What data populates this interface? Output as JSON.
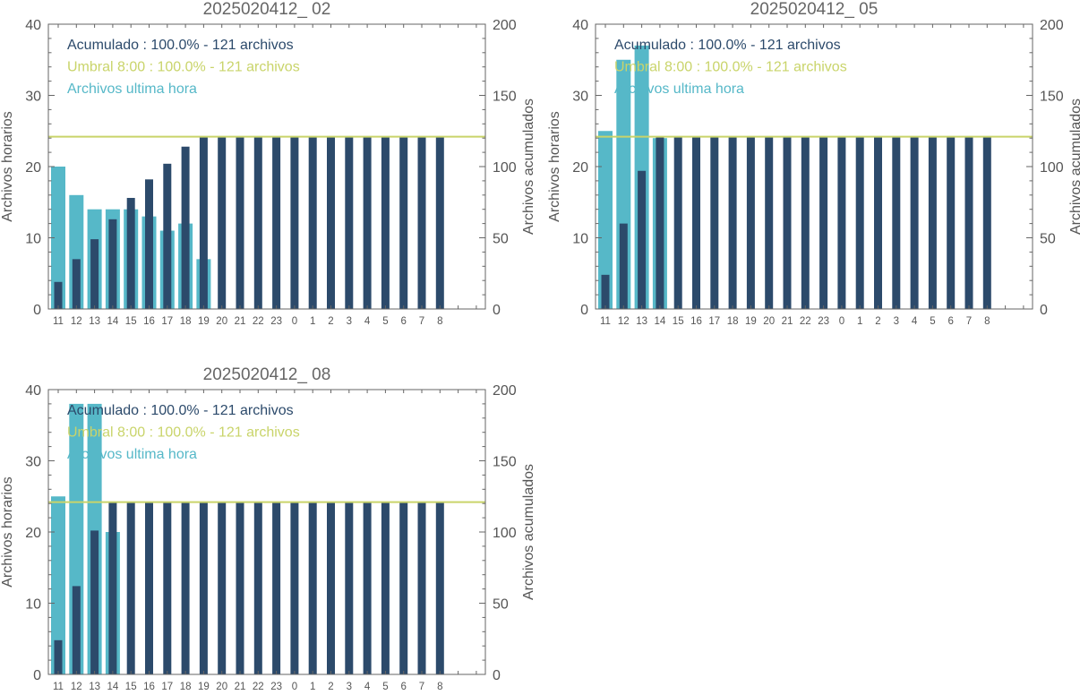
{
  "colors": {
    "accumulated": "#2c4a6b",
    "threshold": "#c9d46a",
    "hourly": "#56b8c8",
    "axis": "#666666",
    "text": "#555555"
  },
  "chart_data": [
    {
      "type": "bar",
      "title": "2025020412_ 02",
      "ylabel": "Archivos horarios",
      "ylabel_right": "Archivos acumulados",
      "ylim": [
        0,
        40
      ],
      "ylim_right": [
        0,
        200
      ],
      "yticks": [
        "0",
        "10",
        "20",
        "30",
        "40"
      ],
      "yticks_right": [
        "0",
        "50",
        "100",
        "150",
        "200"
      ],
      "categories": [
        "11",
        "12",
        "13",
        "14",
        "15",
        "16",
        "17",
        "18",
        "19",
        "20",
        "21",
        "22",
        "23",
        "0",
        "1",
        "2",
        "3",
        "4",
        "5",
        "6",
        "7",
        "8"
      ],
      "series": [
        {
          "name": "Archivos ultima hora",
          "axis": "left",
          "values": [
            20,
            16,
            14,
            14,
            14,
            13,
            11,
            12,
            7,
            0,
            0,
            0,
            0,
            0,
            0,
            0,
            0,
            0,
            0,
            0,
            0,
            0
          ]
        },
        {
          "name": "Acumulado",
          "axis": "right",
          "values": [
            19,
            35,
            49,
            63,
            78,
            91,
            102,
            114,
            121,
            121,
            121,
            121,
            121,
            121,
            121,
            121,
            121,
            121,
            121,
            121,
            121,
            121
          ]
        }
      ],
      "threshold_right": 121,
      "legend": [
        {
          "text": "Acumulado : 100.0% - 121 archivos",
          "color_key": "accumulated"
        },
        {
          "text": "Umbral 8:00 : 100.0% - 121 archivos",
          "color_key": "threshold"
        },
        {
          "text": "Archivos ultima hora",
          "color_key": "hourly"
        }
      ],
      "legend_placement": "top-left",
      "grid": false
    },
    {
      "type": "bar",
      "title": "2025020412_ 05",
      "ylabel": "Archivos horarios",
      "ylabel_right": "Archivos acumulados",
      "ylim": [
        0,
        40
      ],
      "ylim_right": [
        0,
        200
      ],
      "yticks": [
        "0",
        "10",
        "20",
        "30",
        "40"
      ],
      "yticks_right": [
        "0",
        "50",
        "100",
        "150",
        "200"
      ],
      "categories": [
        "11",
        "12",
        "13",
        "14",
        "15",
        "16",
        "17",
        "18",
        "19",
        "20",
        "21",
        "22",
        "23",
        "0",
        "1",
        "2",
        "3",
        "4",
        "5",
        "6",
        "7",
        "8"
      ],
      "series": [
        {
          "name": "Archivos ultima hora",
          "axis": "left",
          "values": [
            25,
            35,
            37,
            24,
            0,
            0,
            0,
            0,
            0,
            0,
            0,
            0,
            0,
            0,
            0,
            0,
            0,
            0,
            0,
            0,
            0,
            0
          ]
        },
        {
          "name": "Acumulado",
          "axis": "right",
          "values": [
            24,
            60,
            97,
            121,
            121,
            121,
            121,
            121,
            121,
            121,
            121,
            121,
            121,
            121,
            121,
            121,
            121,
            121,
            121,
            121,
            121,
            121
          ]
        }
      ],
      "threshold_right": 121,
      "legend": [
        {
          "text": "Acumulado : 100.0% - 121 archivos",
          "color_key": "accumulated"
        },
        {
          "text": "Umbral 8:00 : 100.0% - 121 archivos",
          "color_key": "threshold"
        },
        {
          "text": "Archivos ultima hora",
          "color_key": "hourly"
        }
      ],
      "legend_placement": "top-left",
      "grid": false
    },
    {
      "type": "bar",
      "title": "2025020412_ 08",
      "ylabel": "Archivos horarios",
      "ylabel_right": "Archivos acumulados",
      "ylim": [
        0,
        40
      ],
      "ylim_right": [
        0,
        200
      ],
      "yticks": [
        "0",
        "10",
        "20",
        "30",
        "40"
      ],
      "yticks_right": [
        "0",
        "50",
        "100",
        "150",
        "200"
      ],
      "categories": [
        "11",
        "12",
        "13",
        "14",
        "15",
        "16",
        "17",
        "18",
        "19",
        "20",
        "21",
        "22",
        "23",
        "0",
        "1",
        "2",
        "3",
        "4",
        "5",
        "6",
        "7",
        "8"
      ],
      "series": [
        {
          "name": "Archivos ultima hora",
          "axis": "left",
          "values": [
            25,
            38,
            38,
            20,
            0,
            0,
            0,
            0,
            0,
            0,
            0,
            0,
            0,
            0,
            0,
            0,
            0,
            0,
            0,
            0,
            0,
            0
          ]
        },
        {
          "name": "Acumulado",
          "axis": "right",
          "values": [
            24,
            62,
            101,
            121,
            121,
            121,
            121,
            121,
            121,
            121,
            121,
            121,
            121,
            121,
            121,
            121,
            121,
            121,
            121,
            121,
            121,
            121
          ]
        }
      ],
      "threshold_right": 121,
      "legend": [
        {
          "text": "Acumulado : 100.0% - 121 archivos",
          "color_key": "accumulated"
        },
        {
          "text": "Umbral 8:00 : 100.0% - 121 archivos",
          "color_key": "threshold"
        },
        {
          "text": "Archivos ultima hora",
          "color_key": "hourly"
        }
      ],
      "legend_placement": "top-left",
      "grid": false
    }
  ]
}
